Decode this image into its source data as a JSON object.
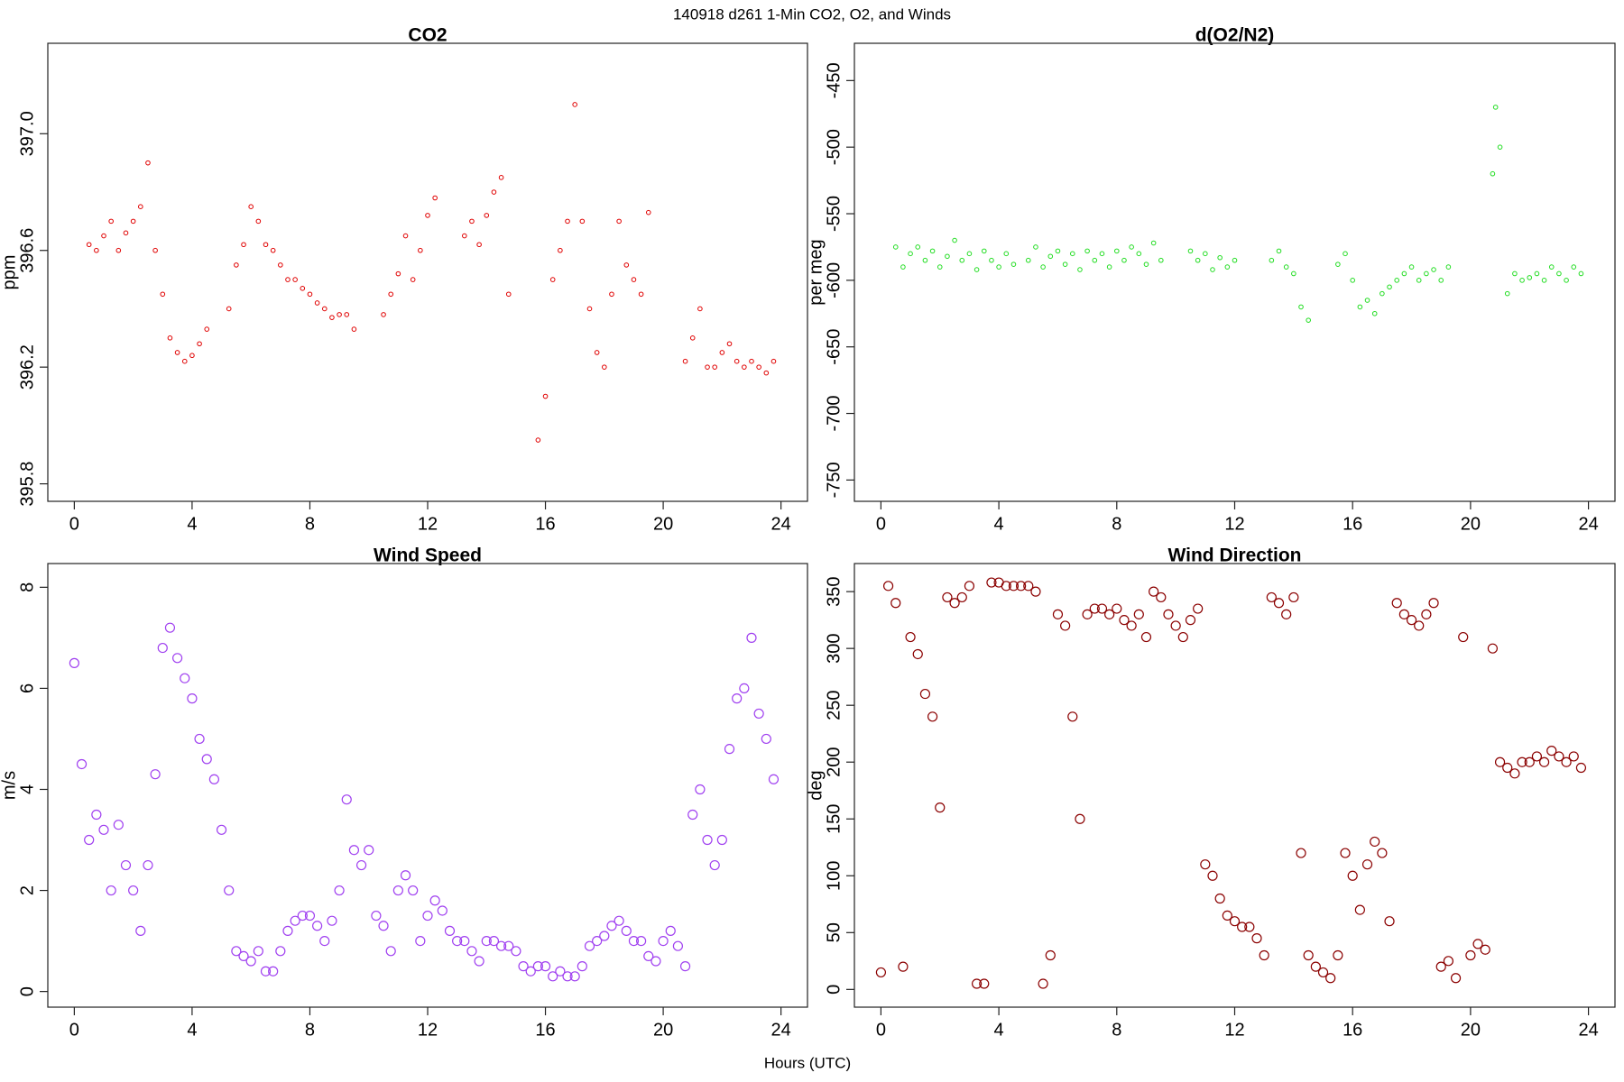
{
  "title": "140918   d261   1-Min CO2, O2, and Winds",
  "x_label": "Hours (UTC)",
  "chart_data": [
    {
      "type": "scatter",
      "title": "CO2",
      "y_label": "ppm",
      "color": "#e00000",
      "xlim": [
        -0.9,
        24.9
      ],
      "xticks": [
        0,
        4,
        8,
        12,
        16,
        20,
        24
      ],
      "ylim": [
        395.74,
        397.31
      ],
      "yticks": [
        395.8,
        396.2,
        396.6,
        {
          "value": 397,
          "label": "397.0"
        }
      ],
      "x": [
        0.5,
        0.75,
        1.0,
        1.25,
        1.5,
        1.75,
        2.0,
        2.25,
        2.5,
        2.75,
        3.0,
        3.25,
        3.5,
        3.75,
        4.0,
        4.25,
        4.5,
        5.25,
        5.5,
        5.75,
        6.0,
        6.25,
        6.5,
        6.75,
        7.0,
        7.25,
        7.5,
        7.75,
        8.0,
        8.25,
        8.5,
        8.75,
        9.0,
        9.25,
        9.5,
        10.5,
        10.75,
        11.0,
        11.25,
        11.5,
        11.75,
        12.0,
        12.25,
        13.25,
        13.5,
        13.75,
        14.0,
        14.25,
        14.5,
        14.75,
        15.75,
        16.0,
        16.25,
        16.5,
        16.75,
        17.0,
        17.25,
        17.5,
        17.75,
        18.0,
        18.25,
        18.5,
        18.75,
        19.0,
        19.25,
        19.5,
        20.75,
        21.0,
        21.25,
        21.5,
        21.75,
        22.0,
        22.25,
        22.5,
        22.75,
        23.0,
        23.25,
        23.5,
        23.75
      ],
      "values": [
        396.62,
        396.6,
        396.65,
        396.7,
        396.6,
        396.66,
        396.7,
        396.75,
        396.9,
        396.6,
        396.45,
        396.3,
        396.25,
        396.22,
        396.24,
        396.28,
        396.33,
        396.4,
        396.55,
        396.62,
        396.75,
        396.7,
        396.62,
        396.6,
        396.55,
        396.5,
        396.5,
        396.47,
        396.45,
        396.42,
        396.4,
        396.37,
        396.38,
        396.38,
        396.33,
        396.38,
        396.45,
        396.52,
        396.65,
        396.5,
        396.6,
        396.72,
        396.78,
        396.65,
        396.7,
        396.62,
        396.72,
        396.8,
        396.85,
        396.45,
        395.95,
        396.1,
        396.5,
        396.6,
        396.7,
        397.1,
        396.7,
        396.4,
        396.25,
        396.2,
        396.45,
        396.7,
        396.55,
        396.5,
        396.45,
        396.73,
        396.22,
        396.3,
        396.4,
        396.2,
        396.2,
        396.25,
        396.28,
        396.22,
        396.2,
        396.22,
        396.2,
        396.18,
        396.22
      ]
    },
    {
      "type": "scatter",
      "title": "d(O2/N2)",
      "y_label": "per meg",
      "color": "#22dd22",
      "xlim": [
        -0.9,
        24.9
      ],
      "xticks": [
        0,
        4,
        8,
        12,
        16,
        20,
        24
      ],
      "ylim": [
        -766,
        -422
      ],
      "yticks": [
        -750,
        -700,
        -650,
        -600,
        -550,
        -500,
        -450
      ],
      "x": [
        0.5,
        0.75,
        1.0,
        1.25,
        1.5,
        1.75,
        2.0,
        2.25,
        2.5,
        2.75,
        3.0,
        3.25,
        3.5,
        3.75,
        4.0,
        4.25,
        4.5,
        5.0,
        5.25,
        5.5,
        5.75,
        6.0,
        6.25,
        6.5,
        6.75,
        7.0,
        7.25,
        7.5,
        7.75,
        8.0,
        8.25,
        8.5,
        8.75,
        9.0,
        9.25,
        9.5,
        10.5,
        10.75,
        11.0,
        11.25,
        11.5,
        11.75,
        12.0,
        13.25,
        13.5,
        13.75,
        14.0,
        14.25,
        14.5,
        15.5,
        15.75,
        16.0,
        16.25,
        16.5,
        16.75,
        17.0,
        17.25,
        17.5,
        17.75,
        18.0,
        18.25,
        18.5,
        18.75,
        19.0,
        19.25,
        20.75,
        20.85,
        21.0,
        21.25,
        21.5,
        21.75,
        22.0,
        22.25,
        22.5,
        22.75,
        23.0,
        23.25,
        23.5,
        23.75
      ],
      "values": [
        -575,
        -590,
        -580,
        -575,
        -585,
        -578,
        -590,
        -582,
        -570,
        -585,
        -580,
        -592,
        -578,
        -585,
        -590,
        -580,
        -588,
        -585,
        -575,
        -590,
        -582,
        -578,
        -588,
        -580,
        -592,
        -578,
        -585,
        -580,
        -590,
        -578,
        -585,
        -575,
        -580,
        -588,
        -572,
        -585,
        -578,
        -585,
        -580,
        -592,
        -583,
        -590,
        -585,
        -585,
        -578,
        -590,
        -595,
        -620,
        -630,
        -588,
        -580,
        -600,
        -620,
        -615,
        -625,
        -610,
        -605,
        -600,
        -595,
        -590,
        -600,
        -595,
        -592,
        -600,
        -590,
        -520,
        -470,
        -500,
        -610,
        -595,
        -600,
        -598,
        -595,
        -600,
        -590,
        -595,
        -600,
        -590,
        -595
      ]
    },
    {
      "type": "scatter",
      "title": "Wind Speed",
      "y_label": "m/s",
      "color": "#a040f0",
      "xlim": [
        -0.9,
        24.9
      ],
      "xticks": [
        0,
        4,
        8,
        12,
        16,
        20,
        24
      ],
      "ylim": [
        -0.31,
        8.47
      ],
      "yticks": [
        0,
        2,
        4,
        6,
        8
      ],
      "x": [
        0,
        0.25,
        0.5,
        0.75,
        1.0,
        1.25,
        1.5,
        1.75,
        2.0,
        2.25,
        2.5,
        2.75,
        3.0,
        3.25,
        3.5,
        3.75,
        4.0,
        4.25,
        4.5,
        4.75,
        5.0,
        5.25,
        5.5,
        5.75,
        6.0,
        6.25,
        6.5,
        6.75,
        7.0,
        7.25,
        7.5,
        7.75,
        8.0,
        8.25,
        8.5,
        8.75,
        9.0,
        9.25,
        9.5,
        9.75,
        10.0,
        10.25,
        10.5,
        10.75,
        11.0,
        11.25,
        11.5,
        11.75,
        12.0,
        12.25,
        12.5,
        12.75,
        13.0,
        13.25,
        13.5,
        13.75,
        14.0,
        14.25,
        14.5,
        14.75,
        15.0,
        15.25,
        15.5,
        15.75,
        16.0,
        16.25,
        16.5,
        16.75,
        17.0,
        17.25,
        17.5,
        17.75,
        18.0,
        18.25,
        18.5,
        18.75,
        19.0,
        19.25,
        19.5,
        19.75,
        20.0,
        20.25,
        20.5,
        20.75,
        21.0,
        21.25,
        21.5,
        21.75,
        22.0,
        22.25,
        22.5,
        22.75,
        23.0,
        23.25,
        23.5,
        23.75
      ],
      "values": [
        6.5,
        4.5,
        3.0,
        3.5,
        3.2,
        2.0,
        3.3,
        2.5,
        2.0,
        1.2,
        2.5,
        4.3,
        6.8,
        7.2,
        6.6,
        6.2,
        5.8,
        5.0,
        4.6,
        4.2,
        3.2,
        2.0,
        0.8,
        0.7,
        0.6,
        0.8,
        0.4,
        0.4,
        0.8,
        1.2,
        1.4,
        1.5,
        1.5,
        1.3,
        1.0,
        1.4,
        2.0,
        3.8,
        2.8,
        2.5,
        2.8,
        1.5,
        1.3,
        0.8,
        2.0,
        2.3,
        2.0,
        1.0,
        1.5,
        1.8,
        1.6,
        1.2,
        1.0,
        1.0,
        0.8,
        0.6,
        1.0,
        1.0,
        0.9,
        0.9,
        0.8,
        0.5,
        0.4,
        0.5,
        0.5,
        0.3,
        0.4,
        0.3,
        0.3,
        0.5,
        0.9,
        1.0,
        1.1,
        1.3,
        1.4,
        1.2,
        1.0,
        1.0,
        0.7,
        0.6,
        1.0,
        1.2,
        0.9,
        0.5,
        3.5,
        4.0,
        3.0,
        2.5,
        3.0,
        4.8,
        5.8,
        6.0,
        7.0,
        5.5,
        5.0,
        4.2
      ]
    },
    {
      "type": "scatter",
      "title": "Wind Direction",
      "y_label": "deg",
      "color": "#8b0000",
      "xlim": [
        -0.9,
        24.9
      ],
      "xticks": [
        0,
        4,
        8,
        12,
        16,
        20,
        24
      ],
      "ylim": [
        -15.6,
        374.7
      ],
      "yticks": [
        0,
        50,
        100,
        150,
        200,
        250,
        300,
        350
      ],
      "x": [
        0,
        0.25,
        0.5,
        0.75,
        1.0,
        1.25,
        1.5,
        1.75,
        2.0,
        2.25,
        2.5,
        2.75,
        3.0,
        3.25,
        3.5,
        3.75,
        4.0,
        4.25,
        4.5,
        4.75,
        5.0,
        5.25,
        5.5,
        5.75,
        6.0,
        6.25,
        6.5,
        6.75,
        7.0,
        7.25,
        7.5,
        7.75,
        8.0,
        8.25,
        8.5,
        8.75,
        9.0,
        9.25,
        9.5,
        9.75,
        10.0,
        10.25,
        10.5,
        10.75,
        11.0,
        11.25,
        11.5,
        11.75,
        12.0,
        12.25,
        12.5,
        12.75,
        13.0,
        13.25,
        13.5,
        13.75,
        14.0,
        14.25,
        14.5,
        14.75,
        15.0,
        15.25,
        15.5,
        15.75,
        16.0,
        16.25,
        16.5,
        16.75,
        17.0,
        17.25,
        17.5,
        17.75,
        18.0,
        18.25,
        18.5,
        18.75,
        19.0,
        19.25,
        19.5,
        19.75,
        20.0,
        20.25,
        20.5,
        20.75,
        21.0,
        21.25,
        21.5,
        21.75,
        22.0,
        22.25,
        22.5,
        22.75,
        23.0,
        23.25,
        23.5,
        23.75
      ],
      "values": [
        15,
        355,
        340,
        20,
        310,
        295,
        260,
        240,
        160,
        345,
        340,
        345,
        355,
        5,
        5,
        358,
        358,
        355,
        355,
        355,
        355,
        350,
        5,
        30,
        330,
        320,
        240,
        150,
        330,
        335,
        335,
        330,
        335,
        325,
        320,
        330,
        310,
        350,
        345,
        330,
        320,
        310,
        325,
        335,
        110,
        100,
        80,
        65,
        60,
        55,
        55,
        45,
        30,
        345,
        340,
        330,
        345,
        120,
        30,
        20,
        15,
        10,
        30,
        120,
        100,
        70,
        110,
        130,
        120,
        60,
        340,
        330,
        325,
        320,
        330,
        340,
        20,
        25,
        10,
        310,
        30,
        40,
        35,
        300,
        200,
        195,
        190,
        200,
        200,
        205,
        200,
        210,
        205,
        200,
        205,
        195
      ]
    }
  ]
}
